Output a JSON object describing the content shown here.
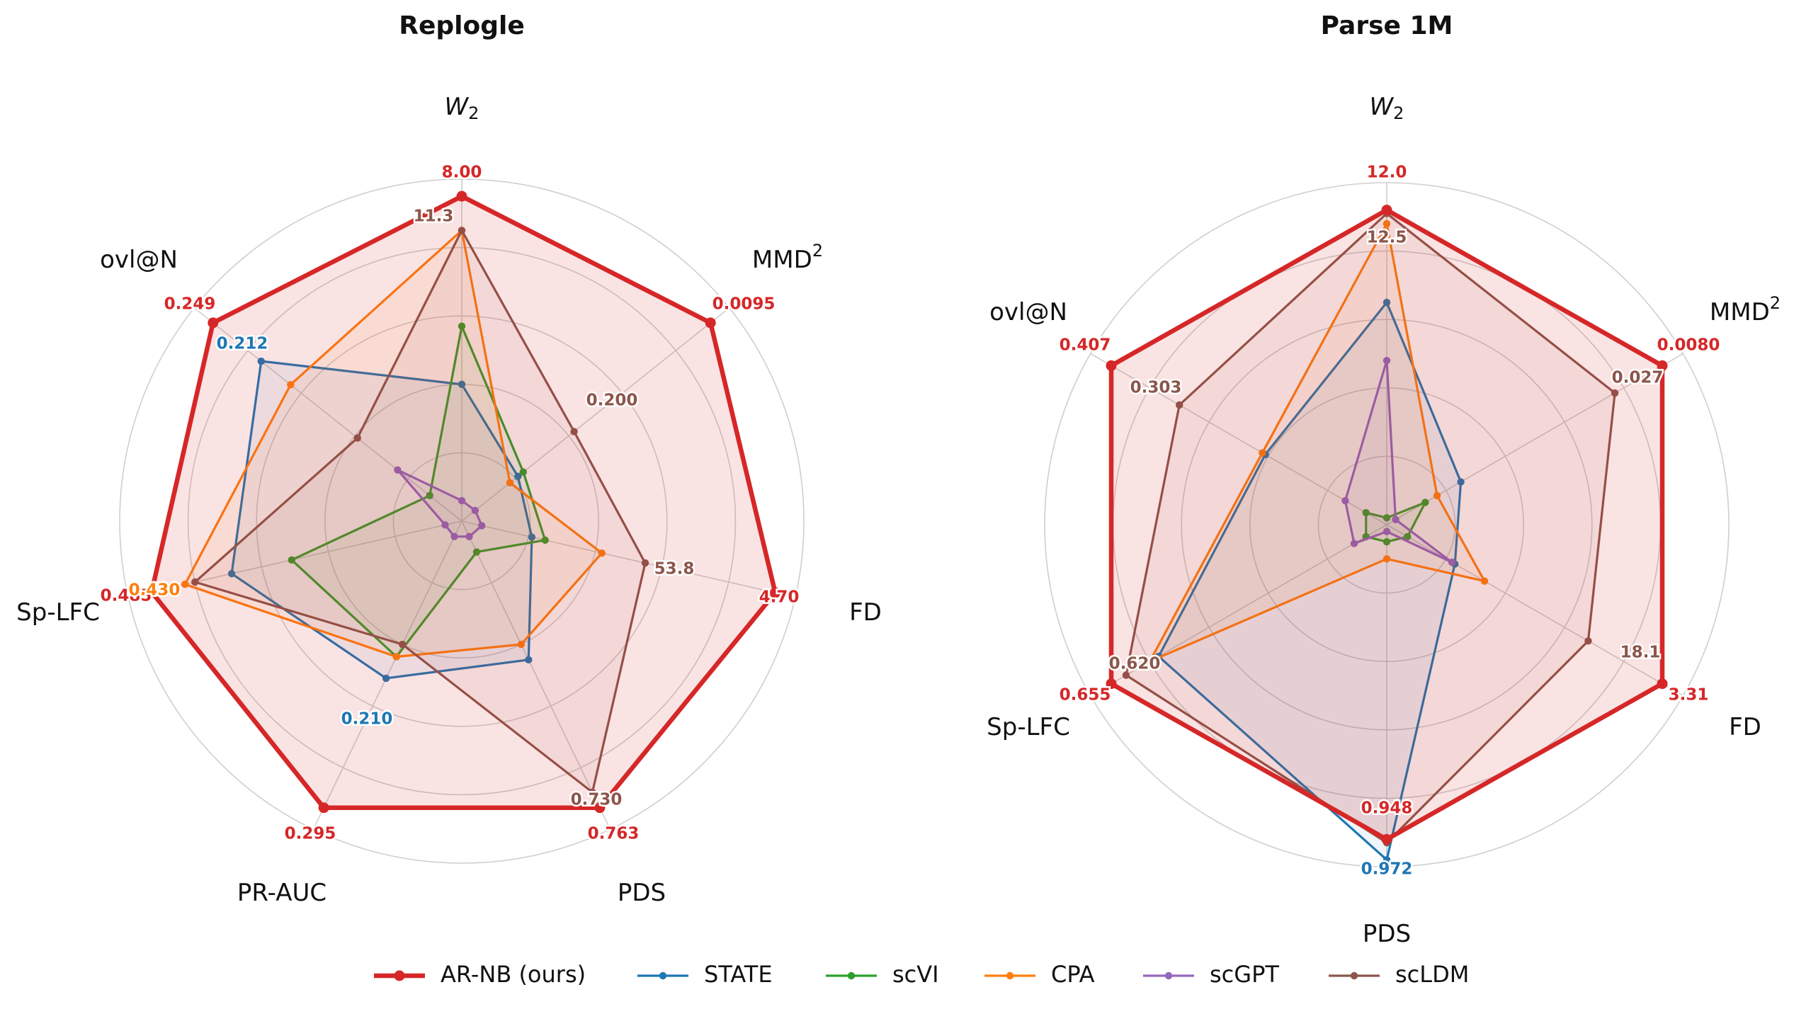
{
  "chart_data": [
    {
      "type": "radar",
      "title": "Replogle",
      "axes": [
        {
          "label": "W",
          "sub": "2"
        },
        {
          "label": "MMD",
          "sup": "2"
        },
        {
          "label": "FD"
        },
        {
          "label": "PDS"
        },
        {
          "label": "PR-AUC"
        },
        {
          "label": "Sp-LFC"
        },
        {
          "label": "ovl@N"
        }
      ],
      "series": [
        {
          "name": "AR-NB (ours)",
          "color": "#d62728",
          "values": [
            0.95,
            0.93,
            0.94,
            0.93,
            0.93,
            0.93,
            0.93
          ]
        },
        {
          "name": "STATE",
          "color": "#1f77b4",
          "values": [
            0.4,
            0.21,
            0.21,
            0.45,
            0.51,
            0.69,
            0.75
          ]
        },
        {
          "name": "scVI",
          "color": "#2ca02c",
          "values": [
            0.57,
            0.23,
            0.25,
            0.1,
            0.44,
            0.51,
            0.12
          ]
        },
        {
          "name": "CPA",
          "color": "#ff7f0e",
          "values": [
            0.85,
            0.18,
            0.42,
            0.4,
            0.44,
            0.83,
            0.64
          ]
        },
        {
          "name": "scGPT",
          "color": "#9467bd",
          "values": [
            0.06,
            0.05,
            0.06,
            0.05,
            0.05,
            0.05,
            0.24
          ]
        },
        {
          "name": "scLDM",
          "color": "#8c564b",
          "values": [
            0.85,
            0.42,
            0.55,
            0.88,
            0.4,
            0.8,
            0.39
          ]
        }
      ],
      "value_labels": [
        {
          "text": "8.00",
          "color": "#d62728"
        },
        {
          "text": "11.3",
          "color": "#8c564b"
        },
        {
          "text": "0.0095",
          "color": "#d62728"
        },
        {
          "text": "0.200",
          "color": "#8c564b"
        },
        {
          "text": "4.70",
          "color": "#d62728"
        },
        {
          "text": "53.8",
          "color": "#8c564b"
        },
        {
          "text": "0.763",
          "color": "#d62728"
        },
        {
          "text": "0.730",
          "color": "#8c564b"
        },
        {
          "text": "0.295",
          "color": "#d62728"
        },
        {
          "text": "0.210",
          "color": "#1f77b4"
        },
        {
          "text": "0.485",
          "color": "#d62728"
        },
        {
          "text": "0.430",
          "color": "#ff7f0e"
        },
        {
          "text": "0.249",
          "color": "#d62728"
        },
        {
          "text": "0.212",
          "color": "#1f77b4"
        }
      ]
    },
    {
      "type": "radar",
      "title": "Parse 1M",
      "axes": [
        {
          "label": "W",
          "sub": "2"
        },
        {
          "label": "MMD",
          "sup": "2"
        },
        {
          "label": "FD"
        },
        {
          "label": "PDS"
        },
        {
          "label": "Sp-LFC"
        },
        {
          "label": "ovl@N"
        }
      ],
      "series": [
        {
          "name": "AR-NB (ours)",
          "color": "#d62728",
          "values": [
            0.92,
            0.93,
            0.93,
            0.92,
            0.93,
            0.93
          ]
        },
        {
          "name": "STATE",
          "color": "#1f77b4",
          "values": [
            0.65,
            0.25,
            0.23,
            0.98,
            0.77,
            0.41
          ]
        },
        {
          "name": "scVI",
          "color": "#2ca02c",
          "values": [
            0.02,
            0.13,
            0.07,
            0.05,
            0.07,
            0.07
          ]
        },
        {
          "name": "CPA",
          "color": "#ff7f0e",
          "values": [
            0.88,
            0.17,
            0.33,
            0.1,
            0.8,
            0.42
          ]
        },
        {
          "name": "scGPT",
          "color": "#9467bd",
          "values": [
            0.48,
            0.03,
            0.22,
            0.02,
            0.11,
            0.14
          ]
        },
        {
          "name": "scLDM",
          "color": "#8c564b",
          "values": [
            0.91,
            0.77,
            0.68,
            0.93,
            0.88,
            0.7
          ]
        }
      ],
      "value_labels": [
        {
          "text": "12.0",
          "color": "#d62728"
        },
        {
          "text": "12.5",
          "color": "#8c564b"
        },
        {
          "text": "0.0080",
          "color": "#d62728"
        },
        {
          "text": "0.027",
          "color": "#8c564b"
        },
        {
          "text": "3.31",
          "color": "#d62728"
        },
        {
          "text": "18.1",
          "color": "#8c564b"
        },
        {
          "text": "0.948",
          "color": "#d62728"
        },
        {
          "text": "0.972",
          "color": "#1f77b4"
        },
        {
          "text": "0.655",
          "color": "#d62728"
        },
        {
          "text": "0.620",
          "color": "#8c564b"
        },
        {
          "text": "0.407",
          "color": "#d62728"
        },
        {
          "text": "0.303",
          "color": "#8c564b"
        }
      ]
    }
  ],
  "legend": {
    "placement": "bottom-center",
    "items": [
      {
        "name": "AR-NB (ours)",
        "color": "#d62728"
      },
      {
        "name": "STATE",
        "color": "#1f77b4"
      },
      {
        "name": "scVI",
        "color": "#2ca02c"
      },
      {
        "name": "CPA",
        "color": "#ff7f0e"
      },
      {
        "name": "scGPT",
        "color": "#9467bd"
      },
      {
        "name": "scLDM",
        "color": "#8c564b"
      }
    ]
  }
}
